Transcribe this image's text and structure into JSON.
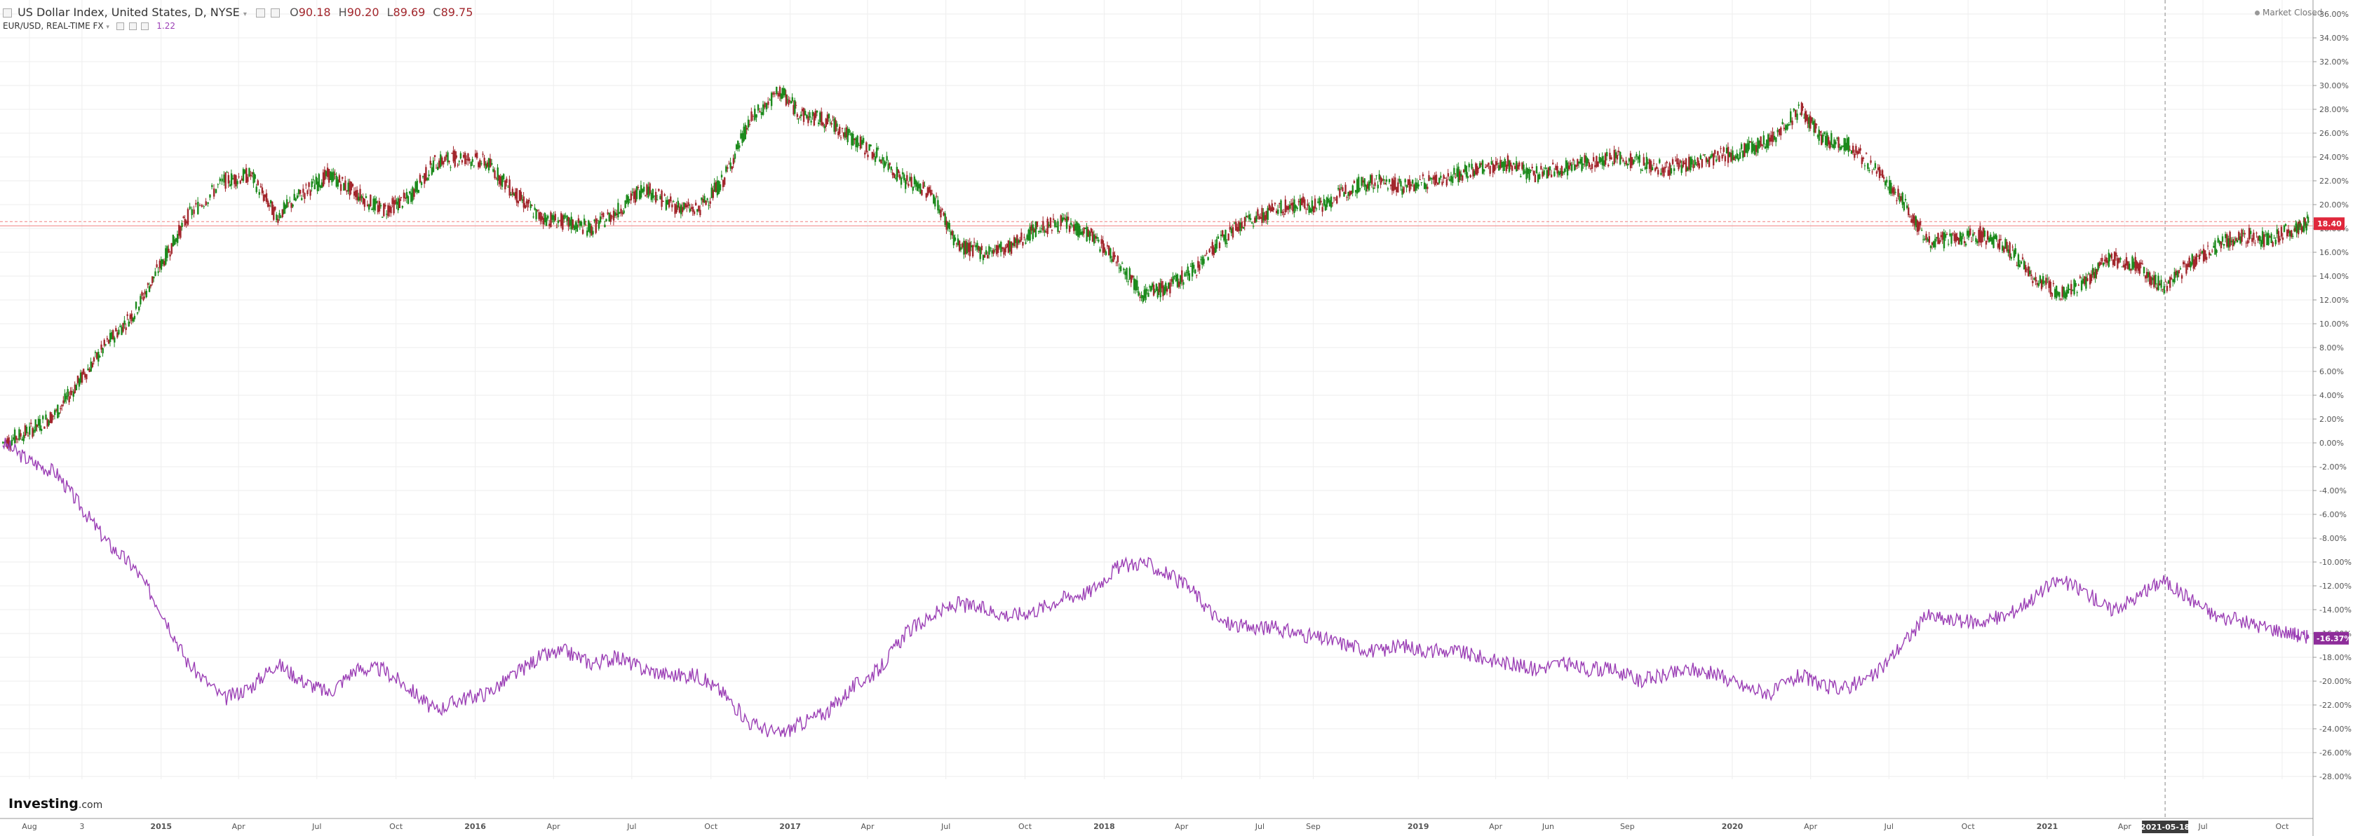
{
  "header": {
    "symbol": "US Dollar Index, United States, D, NYSE",
    "open": "90.18",
    "high": "90.20",
    "low": "89.69",
    "close": "89.75",
    "compare_symbol": "EUR/USD, REAL-TIME FX",
    "compare_value": "1.22"
  },
  "status": "Market Closed",
  "logo": {
    "text": "Investing",
    "suffix": ".com"
  },
  "crosshair_label": "2021-05-18",
  "price_tags": {
    "main": "18.40",
    "compare": "-16.37%"
  },
  "colors": {
    "up": "#1c8a1c",
    "down": "#a2262c",
    "compare": "#9b3fb5",
    "price_line": "#f08080",
    "label_bg": "#e0283c",
    "compare_bg": "#8e2d9a",
    "grid": "#eeeeee",
    "axis_text": "#555555"
  },
  "chart_data": {
    "type": "line",
    "xlabel": "",
    "ylabel": "",
    "ylim": [
      -28,
      36
    ],
    "y_ticks": [
      "36.00%",
      "34.00%",
      "32.00%",
      "30.00%",
      "28.00%",
      "26.00%",
      "24.00%",
      "22.00%",
      "20.00%",
      "18.00%",
      "16.00%",
      "14.00%",
      "12.00%",
      "10.00%",
      "8.00%",
      "6.00%",
      "4.00%",
      "2.00%",
      "0.00%",
      "-2.00%",
      "-4.00%",
      "-6.00%",
      "-8.00%",
      "-10.00%",
      "-12.00%",
      "-14.00%",
      "-16.00%",
      "-18.00%",
      "-20.00%",
      "-22.00%",
      "-24.00%",
      "-26.00%",
      "-28.00%"
    ],
    "x_ticks": [
      "Aug",
      "3",
      "2015",
      "Apr",
      "Jul",
      "Oct",
      "2016",
      "Apr",
      "Jul",
      "Oct",
      "2017",
      "Apr",
      "Jul",
      "Oct",
      "2018",
      "Apr",
      "Jul",
      "Sep",
      "2019",
      "Apr",
      "Jun",
      "Sep",
      "2020",
      "Apr",
      "Jul",
      "Oct",
      "2021",
      "Apr",
      "Jul",
      "Oct"
    ],
    "x": [
      "2014-07-01",
      "2014-08-01",
      "2014-09-01",
      "2014-10-01",
      "2014-11-01",
      "2014-12-01",
      "2015-01-01",
      "2015-02-01",
      "2015-03-15",
      "2015-04-15",
      "2015-05-15",
      "2015-06-15",
      "2015-07-15",
      "2015-08-15",
      "2015-09-15",
      "2015-10-15",
      "2015-11-15",
      "2015-12-15",
      "2016-01-15",
      "2016-02-15",
      "2016-03-15",
      "2016-04-15",
      "2016-05-15",
      "2016-06-15",
      "2016-07-15",
      "2016-08-15",
      "2016-09-15",
      "2016-10-15",
      "2016-11-15",
      "2016-12-20",
      "2017-01-15",
      "2017-02-15",
      "2017-03-15",
      "2017-04-15",
      "2017-05-15",
      "2017-06-15",
      "2017-07-15",
      "2017-08-15",
      "2017-09-15",
      "2017-10-15",
      "2017-11-15",
      "2017-12-15",
      "2018-01-15",
      "2018-02-15",
      "2018-03-15",
      "2018-04-15",
      "2018-05-15",
      "2018-06-15",
      "2018-07-15",
      "2018-08-15",
      "2018-09-15",
      "2018-10-15",
      "2018-11-15",
      "2018-12-15",
      "2019-01-15",
      "2019-02-15",
      "2019-03-15",
      "2019-04-15",
      "2019-05-15",
      "2019-06-15",
      "2019-07-15",
      "2019-08-15",
      "2019-09-15",
      "2019-10-15",
      "2019-11-15",
      "2019-12-15",
      "2020-01-15",
      "2020-02-15",
      "2020-03-20",
      "2020-04-15",
      "2020-05-15",
      "2020-06-15",
      "2020-07-15",
      "2020-08-15",
      "2020-09-15",
      "2020-10-15",
      "2020-11-15",
      "2020-12-15",
      "2021-01-15",
      "2021-02-15",
      "2021-03-15",
      "2021-04-15",
      "2021-05-15",
      "2021-06-15",
      "2021-07-15",
      "2021-08-15",
      "2021-09-15",
      "2021-10-15",
      "2021-11-01"
    ],
    "series": [
      {
        "name": "US Dollar Index",
        "style": "candles",
        "values": [
          0.0,
          1.0,
          2.5,
          5.5,
          8.5,
          11.0,
          15.0,
          19.0,
          22.0,
          22.5,
          19.0,
          21.0,
          22.5,
          21.0,
          19.5,
          20.5,
          23.5,
          24.0,
          23.5,
          21.0,
          19.0,
          18.5,
          18.0,
          19.5,
          21.5,
          20.0,
          19.5,
          22.0,
          27.0,
          29.5,
          27.5,
          27.0,
          25.5,
          24.0,
          22.0,
          21.0,
          16.5,
          16.0,
          16.5,
          18.0,
          18.5,
          17.5,
          15.5,
          12.5,
          13.0,
          14.5,
          17.0,
          18.5,
          19.5,
          20.0,
          20.0,
          21.5,
          22.0,
          21.5,
          22.0,
          22.5,
          23.0,
          23.5,
          22.5,
          23.0,
          23.5,
          24.0,
          23.5,
          23.0,
          23.5,
          24.0,
          24.5,
          25.5,
          28.0,
          25.5,
          25.0,
          23.0,
          20.5,
          17.0,
          17.0,
          17.5,
          16.5,
          14.0,
          12.5,
          13.5,
          15.5,
          15.0,
          13.0,
          15.0,
          16.5,
          17.5,
          17.0,
          18.0,
          18.4
        ]
      },
      {
        "name": "EUR/USD, REAL-TIME FX",
        "style": "line",
        "values": [
          0.0,
          -1.5,
          -2.5,
          -5.5,
          -8.5,
          -10.5,
          -14.0,
          -18.5,
          -21.5,
          -20.5,
          -18.5,
          -20.0,
          -21.0,
          -19.0,
          -19.0,
          -20.5,
          -22.5,
          -21.5,
          -21.0,
          -19.5,
          -18.0,
          -17.5,
          -18.5,
          -18.0,
          -19.0,
          -19.5,
          -19.5,
          -21.0,
          -23.5,
          -24.5,
          -23.5,
          -22.5,
          -20.5,
          -19.0,
          -16.0,
          -14.5,
          -13.5,
          -14.0,
          -14.5,
          -14.0,
          -13.0,
          -12.5,
          -10.5,
          -10.0,
          -11.0,
          -12.5,
          -15.0,
          -15.5,
          -15.5,
          -16.0,
          -16.5,
          -17.0,
          -17.5,
          -17.0,
          -17.5,
          -17.5,
          -18.0,
          -18.5,
          -19.0,
          -18.5,
          -19.0,
          -19.0,
          -20.0,
          -19.5,
          -19.0,
          -19.5,
          -20.5,
          -21.0,
          -19.5,
          -20.5,
          -20.5,
          -19.5,
          -17.0,
          -14.5,
          -15.0,
          -15.0,
          -14.5,
          -13.0,
          -11.5,
          -12.5,
          -14.0,
          -13.0,
          -11.5,
          -13.0,
          -14.5,
          -15.0,
          -15.5,
          -16.0,
          -16.4
        ]
      }
    ]
  }
}
